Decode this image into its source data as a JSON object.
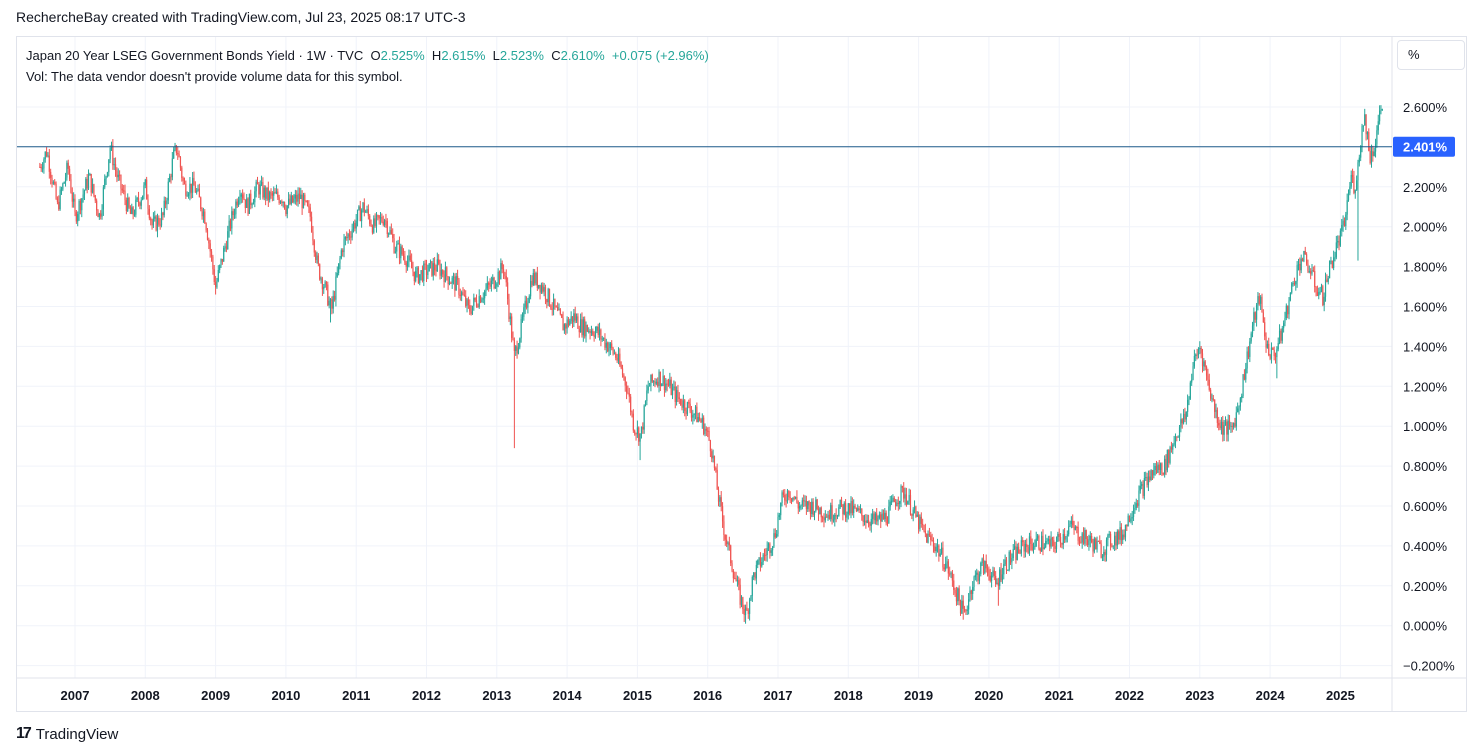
{
  "header": {
    "attribution": "RechercheBay created with TradingView.com, Jul 23, 2025 08:17 UTC-3"
  },
  "legend": {
    "title": "Japan 20 Year LSEG Government Bonds Yield · 1W · TVC",
    "o_label": "O",
    "o_value": "2.525%",
    "h_label": "H",
    "h_value": "2.615%",
    "l_label": "L",
    "l_value": "2.523%",
    "c_label": "C",
    "c_value": "2.610%",
    "change": "+0.075 (+2.96%)",
    "volume_note": "Vol: The data vendor doesn't provide volume data for this symbol."
  },
  "unit_button": "%",
  "footer": {
    "logo_mark": "17",
    "logo_text": "TradingView"
  },
  "colors": {
    "up": "#26a69a",
    "down": "#ef5350",
    "hline": "#1e5b8a",
    "price_tag": "#2962ff",
    "grid": "#f0f3fa"
  },
  "chart_data": {
    "type": "candlestick",
    "y_axis_ticks": [
      "2.600%",
      "2.200%",
      "2.000%",
      "1.800%",
      "1.600%",
      "1.400%",
      "1.200%",
      "1.000%",
      "0.800%",
      "0.600%",
      "0.400%",
      "0.200%",
      "0.000%",
      "−0.200%"
    ],
    "x_axis_ticks": [
      "2007",
      "2008",
      "2009",
      "2010",
      "2011",
      "2012",
      "2013",
      "2014",
      "2015",
      "2016",
      "2017",
      "2018",
      "2019",
      "2020",
      "2021",
      "2022",
      "2023",
      "2024",
      "2025"
    ],
    "ylim": [
      -0.25,
      2.75
    ],
    "xlim": [
      2006.2,
      2025.85
    ],
    "horizontal_line": {
      "value": 2.401,
      "label": "2.401%"
    },
    "series_path": [
      [
        2006.5,
        2.3
      ],
      [
        2006.6,
        2.38
      ],
      [
        2006.75,
        2.1
      ],
      [
        2006.9,
        2.3
      ],
      [
        2007.0,
        2.05
      ],
      [
        2007.2,
        2.25
      ],
      [
        2007.35,
        2.05
      ],
      [
        2007.5,
        2.4
      ],
      [
        2007.6,
        2.25
      ],
      [
        2007.8,
        2.05
      ],
      [
        2008.0,
        2.2
      ],
      [
        2008.1,
        2.0
      ],
      [
        2008.25,
        2.05
      ],
      [
        2008.4,
        2.35
      ],
      [
        2008.45,
        2.4
      ],
      [
        2008.55,
        2.2
      ],
      [
        2008.7,
        2.2
      ],
      [
        2008.85,
        2.05
      ],
      [
        2009.0,
        1.7
      ],
      [
        2009.1,
        1.85
      ],
      [
        2009.2,
        2.0
      ],
      [
        2009.35,
        2.2
      ],
      [
        2009.45,
        2.1
      ],
      [
        2009.6,
        2.2
      ],
      [
        2009.75,
        2.15
      ],
      [
        2009.95,
        2.15
      ],
      [
        2010.0,
        2.1
      ],
      [
        2010.2,
        2.15
      ],
      [
        2010.35,
        2.05
      ],
      [
        2010.45,
        1.8
      ],
      [
        2010.55,
        1.7
      ],
      [
        2010.65,
        1.58
      ],
      [
        2010.8,
        1.9
      ],
      [
        2010.95,
        2.0
      ],
      [
        2011.1,
        2.1
      ],
      [
        2011.25,
        2.0
      ],
      [
        2011.4,
        2.05
      ],
      [
        2011.55,
        1.9
      ],
      [
        2011.7,
        1.85
      ],
      [
        2011.85,
        1.75
      ],
      [
        2012.0,
        1.78
      ],
      [
        2012.15,
        1.8
      ],
      [
        2012.3,
        1.75
      ],
      [
        2012.45,
        1.7
      ],
      [
        2012.6,
        1.58
      ],
      [
        2012.75,
        1.65
      ],
      [
        2012.9,
        1.7
      ],
      [
        2013.0,
        1.75
      ],
      [
        2013.1,
        1.8
      ],
      [
        2013.2,
        1.5
      ],
      [
        2013.25,
        1.35
      ],
      [
        2013.35,
        1.5
      ],
      [
        2013.5,
        1.75
      ],
      [
        2013.65,
        1.7
      ],
      [
        2013.8,
        1.6
      ],
      [
        2013.95,
        1.5
      ],
      [
        2014.1,
        1.55
      ],
      [
        2014.2,
        1.5
      ],
      [
        2014.4,
        1.48
      ],
      [
        2014.55,
        1.42
      ],
      [
        2014.7,
        1.35
      ],
      [
        2014.85,
        1.2
      ],
      [
        2014.95,
        1.0
      ],
      [
        2015.05,
        0.95
      ],
      [
        2015.15,
        1.2
      ],
      [
        2015.3,
        1.25
      ],
      [
        2015.45,
        1.2
      ],
      [
        2015.55,
        1.15
      ],
      [
        2015.7,
        1.1
      ],
      [
        2015.85,
        1.05
      ],
      [
        2015.95,
        1.0
      ],
      [
        2016.05,
        0.9
      ],
      [
        2016.15,
        0.65
      ],
      [
        2016.25,
        0.45
      ],
      [
        2016.35,
        0.3
      ],
      [
        2016.45,
        0.15
      ],
      [
        2016.55,
        0.05
      ],
      [
        2016.65,
        0.25
      ],
      [
        2016.8,
        0.35
      ],
      [
        2016.95,
        0.45
      ],
      [
        2017.05,
        0.62
      ],
      [
        2017.15,
        0.68
      ],
      [
        2017.3,
        0.6
      ],
      [
        2017.5,
        0.6
      ],
      [
        2017.7,
        0.56
      ],
      [
        2017.9,
        0.59
      ],
      [
        2018.05,
        0.58
      ],
      [
        2018.2,
        0.55
      ],
      [
        2018.4,
        0.52
      ],
      [
        2018.55,
        0.55
      ],
      [
        2018.7,
        0.65
      ],
      [
        2018.8,
        0.67
      ],
      [
        2018.95,
        0.55
      ],
      [
        2019.1,
        0.45
      ],
      [
        2019.25,
        0.4
      ],
      [
        2019.4,
        0.3
      ],
      [
        2019.55,
        0.15
      ],
      [
        2019.65,
        0.05
      ],
      [
        2019.75,
        0.2
      ],
      [
        2019.9,
        0.3
      ],
      [
        2020.0,
        0.28
      ],
      [
        2020.1,
        0.2
      ],
      [
        2020.2,
        0.3
      ],
      [
        2020.35,
        0.35
      ],
      [
        2020.5,
        0.4
      ],
      [
        2020.7,
        0.42
      ],
      [
        2020.9,
        0.4
      ],
      [
        2021.05,
        0.45
      ],
      [
        2021.15,
        0.5
      ],
      [
        2021.3,
        0.45
      ],
      [
        2021.45,
        0.42
      ],
      [
        2021.6,
        0.38
      ],
      [
        2021.75,
        0.43
      ],
      [
        2021.9,
        0.46
      ],
      [
        2022.05,
        0.6
      ],
      [
        2022.2,
        0.7
      ],
      [
        2022.35,
        0.78
      ],
      [
        2022.5,
        0.8
      ],
      [
        2022.65,
        0.95
      ],
      [
        2022.8,
        1.05
      ],
      [
        2022.9,
        1.3
      ],
      [
        2023.0,
        1.4
      ],
      [
        2023.1,
        1.25
      ],
      [
        2023.2,
        1.1
      ],
      [
        2023.3,
        1.0
      ],
      [
        2023.45,
        0.98
      ],
      [
        2023.55,
        1.1
      ],
      [
        2023.65,
        1.3
      ],
      [
        2023.75,
        1.5
      ],
      [
        2023.85,
        1.65
      ],
      [
        2023.95,
        1.4
      ],
      [
        2024.05,
        1.35
      ],
      [
        2024.15,
        1.45
      ],
      [
        2024.25,
        1.6
      ],
      [
        2024.35,
        1.75
      ],
      [
        2024.45,
        1.85
      ],
      [
        2024.55,
        1.8
      ],
      [
        2024.65,
        1.7
      ],
      [
        2024.75,
        1.65
      ],
      [
        2024.85,
        1.8
      ],
      [
        2024.95,
        1.9
      ],
      [
        2025.05,
        2.0
      ],
      [
        2025.15,
        2.25
      ],
      [
        2025.2,
        2.2
      ],
      [
        2025.25,
        2.3
      ],
      [
        2025.3,
        2.48
      ],
      [
        2025.35,
        2.55
      ],
      [
        2025.42,
        2.35
      ],
      [
        2025.48,
        2.4
      ],
      [
        2025.55,
        2.55
      ],
      [
        2025.6,
        2.61
      ]
    ],
    "spikes": [
      {
        "x": 2009.0,
        "low": 1.66
      },
      {
        "x": 2010.65,
        "low": 1.52
      },
      {
        "x": 2013.25,
        "low": 0.89
      },
      {
        "x": 2015.05,
        "low": 0.83
      },
      {
        "x": 2016.55,
        "low": 0.01
      },
      {
        "x": 2019.65,
        "low": 0.03
      },
      {
        "x": 2020.15,
        "low": 0.1
      },
      {
        "x": 2024.1,
        "low": 1.24
      },
      {
        "x": 2025.25,
        "low": 1.83
      }
    ]
  }
}
